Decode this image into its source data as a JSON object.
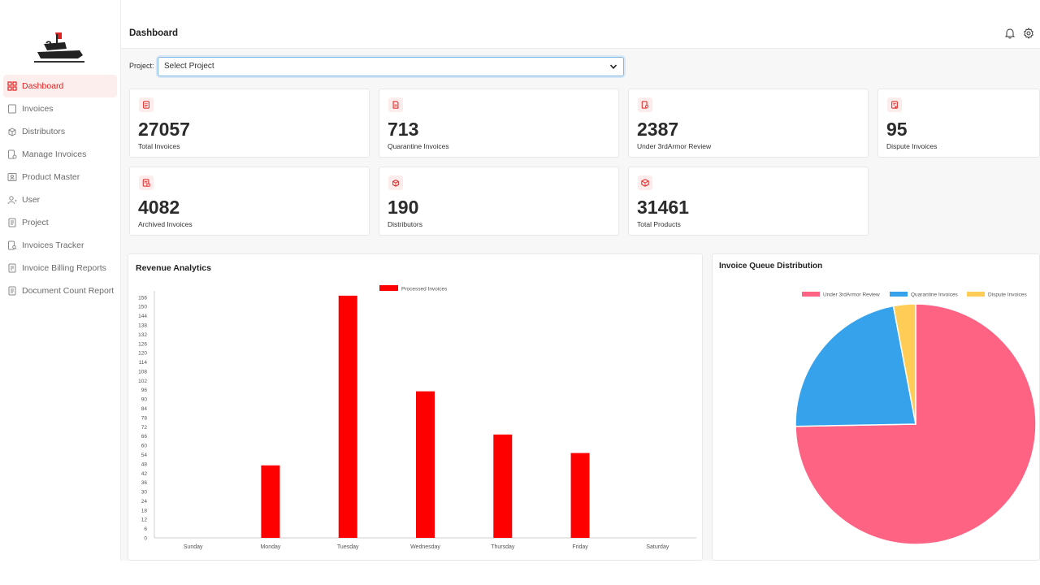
{
  "app": {
    "page_title": "Dashboard",
    "logo_icon": "3rdarmor-logo",
    "brand_color": "#e0201e"
  },
  "sidebar": {
    "items": [
      {
        "label": "Dashboard",
        "icon": "grid-icon",
        "active": true
      },
      {
        "label": "Invoices",
        "icon": "square-icon"
      },
      {
        "label": "Distributors",
        "icon": "box-network-icon"
      },
      {
        "label": "Manage Invoices",
        "icon": "doc-gear-icon"
      },
      {
        "label": "Product Master",
        "icon": "id-card-icon"
      },
      {
        "label": "User",
        "icon": "user-add-icon"
      },
      {
        "label": "Project",
        "icon": "document-icon"
      },
      {
        "label": "Invoices Tracker",
        "icon": "doc-search-icon"
      },
      {
        "label": "Invoice Billing Reports",
        "icon": "report-icon"
      },
      {
        "label": "Document Count Report",
        "icon": "document-icon"
      }
    ]
  },
  "header": {
    "bell_icon": "bell-icon",
    "settings_icon": "gear-icon"
  },
  "filter": {
    "label": "Project:",
    "selected": "Select Project"
  },
  "stats": [
    {
      "value": "27057",
      "label": "Total Invoices",
      "icon": "invoice-doc-icon"
    },
    {
      "value": "713",
      "label": "Quarantine Invoices",
      "icon": "doc-icon"
    },
    {
      "value": "2387",
      "label": "Under 3rdArmor Review",
      "icon": "doc-review-icon"
    },
    {
      "value": "95",
      "label": "Dispute Invoices",
      "icon": "doc-dispute-icon"
    },
    {
      "value": "4082",
      "label": "Archived Invoices",
      "icon": "doc-archive-icon"
    },
    {
      "value": "190",
      "label": "Distributors",
      "icon": "distributor-icon"
    },
    {
      "value": "31461",
      "label": "Total Products",
      "icon": "cube-icon"
    }
  ],
  "revenue": {
    "title": "Revenue Analytics"
  },
  "queue": {
    "title": "Invoice Queue Distribution"
  },
  "chart_data": [
    {
      "type": "bar",
      "title": "Revenue Analytics",
      "categories": [
        "Sunday",
        "Monday",
        "Tuesday",
        "Wednesday",
        "Thursday",
        "Friday",
        "Saturday"
      ],
      "series": [
        {
          "name": "Processed Invoices",
          "values": [
            0,
            47,
            157,
            95,
            67,
            55,
            0
          ],
          "color": "#ff0000"
        }
      ],
      "ylim": [
        0,
        158
      ],
      "yticks": [
        0,
        6,
        12,
        18,
        24,
        30,
        36,
        42,
        48,
        54,
        60,
        66,
        72,
        78,
        84,
        90,
        96,
        102,
        108,
        114,
        120,
        126,
        132,
        138,
        144,
        150,
        156
      ],
      "legend": "top-center",
      "grid": false
    },
    {
      "type": "pie",
      "title": "Invoice Queue Distribution",
      "labels": [
        "Under 3rdArmor Review",
        "Quarantine Invoices",
        "Dispute Invoices"
      ],
      "values": [
        2387,
        713,
        95
      ],
      "colors": [
        "#ff6384",
        "#36a2eb",
        "#ffcd56"
      ],
      "legend": "top-right"
    }
  ]
}
